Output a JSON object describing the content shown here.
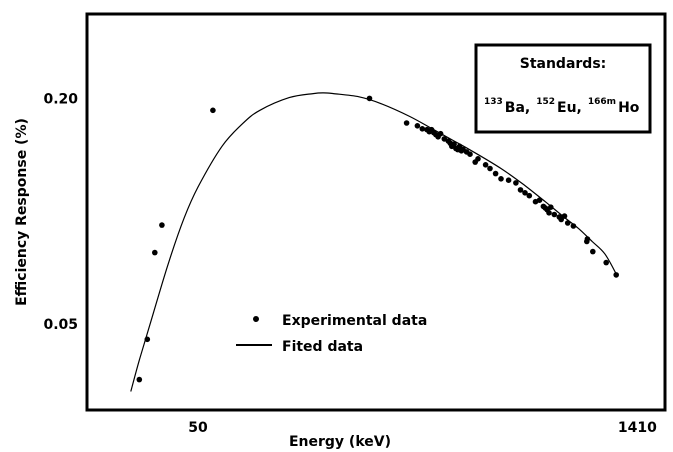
{
  "chart_data": {
    "type": "scatter",
    "title": "",
    "xlabel": "Energy (keV)",
    "ylabel": "Efficiency Response (%)",
    "x_scale": "log",
    "y_scale": "log",
    "xlim": [
      22,
      1700
    ],
    "ylim": [
      0.03,
      0.33
    ],
    "x_ticks": [
      50,
      1410
    ],
    "x_tick_labels": [
      "50",
      "1410"
    ],
    "y_ticks": [
      0.05,
      0.2
    ],
    "y_tick_labels": [
      "0.05",
      "0.20"
    ],
    "grid": false,
    "legend": {
      "placement": "bottom-center",
      "entries": [
        {
          "label": "Experimental data",
          "marker": "dot"
        },
        {
          "label": "Fited data",
          "marker": "line"
        }
      ]
    },
    "annotation": {
      "placement": "top-right",
      "title": "Standards:",
      "sources": [
        {
          "mass": "133",
          "element": "Ba,"
        },
        {
          "mass": "152",
          "element": "Eu,"
        },
        {
          "mass": "166m",
          "element": "Ho"
        }
      ]
    },
    "series": [
      {
        "name": "Experimental data",
        "kind": "points",
        "x": [
          32,
          34,
          36,
          38,
          56,
          184,
          244,
          265,
          275,
          285,
          290,
          295,
          300,
          305,
          310,
          316,
          325,
          335,
          340,
          344,
          350,
          355,
          360,
          365,
          370,
          375,
          385,
          395,
          411,
          420,
          445,
          460,
          480,
          500,
          530,
          560,
          580,
          600,
          620,
          650,
          670,
          690,
          700,
          710,
          720,
          730,
          750,
          779,
          790,
          810,
          830,
          867,
          960,
          964,
          1005,
          1112,
          1200
        ],
        "y": [
          0.0355,
          0.0455,
          0.0775,
          0.0918,
          0.186,
          0.2,
          0.172,
          0.169,
          0.166,
          0.165,
          0.163,
          0.165,
          0.162,
          0.16,
          0.158,
          0.161,
          0.156,
          0.154,
          0.152,
          0.149,
          0.151,
          0.147,
          0.146,
          0.149,
          0.145,
          0.146,
          0.144,
          0.142,
          0.1352,
          0.138,
          0.133,
          0.13,
          0.126,
          0.122,
          0.121,
          0.119,
          0.114,
          0.112,
          0.11,
          0.106,
          0.107,
          0.103,
          0.102,
          0.101,
          0.099,
          0.1025,
          0.098,
          0.0965,
          0.095,
          0.097,
          0.093,
          0.0913,
          0.083,
          0.0843,
          0.078,
          0.0729,
          0.0676
        ]
      },
      {
        "name": "Fited data",
        "kind": "line",
        "x": [
          30,
          32,
          35,
          40,
          45,
          50,
          60,
          70,
          80,
          100,
          120,
          130,
          140,
          170,
          200,
          250,
          300,
          350,
          400,
          500,
          600,
          700,
          800,
          900,
          1000,
          1100,
          1200
        ],
        "y": [
          0.033,
          0.04,
          0.051,
          0.073,
          0.096,
          0.116,
          0.149,
          0.171,
          0.186,
          0.201,
          0.206,
          0.207,
          0.206,
          0.202,
          0.194,
          0.179,
          0.165,
          0.154,
          0.145,
          0.13,
          0.117,
          0.106,
          0.097,
          0.09,
          0.083,
          0.077,
          0.068
        ]
      }
    ]
  }
}
